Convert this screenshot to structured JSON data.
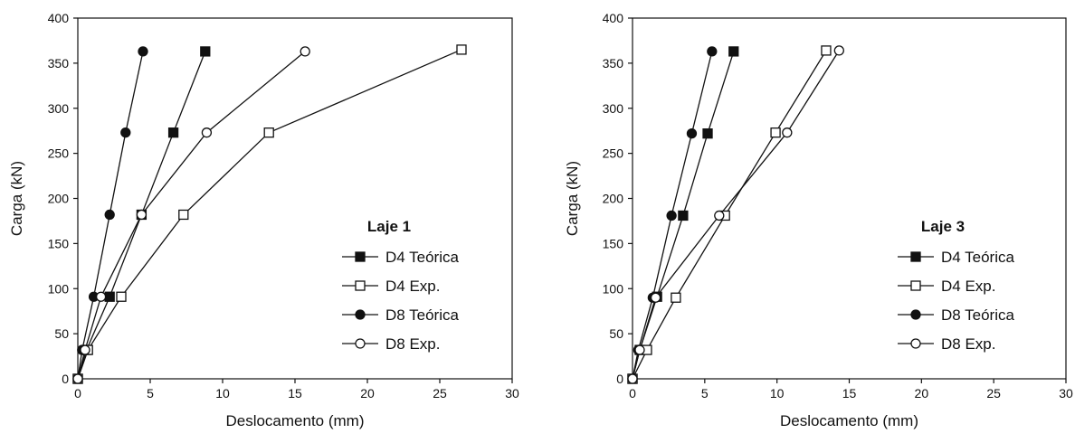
{
  "colors": {
    "ink": "#111111",
    "background": "#ffffff"
  },
  "chart_data": [
    {
      "type": "line",
      "xlabel": "Deslocamento (mm)",
      "ylabel": "Carga (kN)",
      "xlim": [
        0,
        30
      ],
      "ylim": [
        0,
        400
      ],
      "xticks": [
        "0",
        "5",
        "10",
        "15",
        "20",
        "25",
        "30"
      ],
      "yticks": [
        "0",
        "50",
        "100",
        "150",
        "200",
        "250",
        "300",
        "350",
        "400"
      ],
      "grid": false,
      "legend_position": "lower-right",
      "legend_title": "Laje 1",
      "series": [
        {
          "name": "D4 Teórica",
          "marker": "square-filled",
          "points": [
            [
              0,
              0
            ],
            [
              0.6,
              32
            ],
            [
              2.2,
              91
            ],
            [
              4.4,
              182
            ],
            [
              6.6,
              273
            ],
            [
              8.8,
              363
            ]
          ]
        },
        {
          "name": "D4 Exp.",
          "marker": "square-open",
          "points": [
            [
              0,
              0
            ],
            [
              0.7,
              32
            ],
            [
              3.0,
              91
            ],
            [
              7.3,
              182
            ],
            [
              13.2,
              273
            ],
            [
              26.5,
              365
            ]
          ]
        },
        {
          "name": "D8 Teórica",
          "marker": "circle-filled",
          "points": [
            [
              0,
              0
            ],
            [
              0.3,
              32
            ],
            [
              1.1,
              91
            ],
            [
              2.2,
              182
            ],
            [
              3.3,
              273
            ],
            [
              4.5,
              363
            ]
          ]
        },
        {
          "name": "D8 Exp.",
          "marker": "circle-open",
          "points": [
            [
              0,
              0
            ],
            [
              0.5,
              32
            ],
            [
              1.6,
              91
            ],
            [
              4.4,
              182
            ],
            [
              8.9,
              273
            ],
            [
              15.7,
              363
            ]
          ]
        }
      ]
    },
    {
      "type": "line",
      "xlabel": "Deslocamento (mm)",
      "ylabel": "Carga (kN)",
      "xlim": [
        0,
        30
      ],
      "ylim": [
        0,
        400
      ],
      "xticks": [
        "0",
        "5",
        "10",
        "15",
        "20",
        "25",
        "30"
      ],
      "yticks": [
        "0",
        "50",
        "100",
        "150",
        "200",
        "250",
        "300",
        "350",
        "400"
      ],
      "grid": false,
      "legend_position": "lower-right",
      "legend_title": "Laje 3",
      "series": [
        {
          "name": "D4 Teórica",
          "marker": "square-filled",
          "points": [
            [
              0,
              0
            ],
            [
              0.5,
              32
            ],
            [
              1.7,
              91
            ],
            [
              3.5,
              181
            ],
            [
              5.2,
              272
            ],
            [
              7.0,
              363
            ]
          ]
        },
        {
          "name": "D4 Exp.",
          "marker": "square-open",
          "points": [
            [
              0,
              0
            ],
            [
              1.0,
              32
            ],
            [
              3.0,
              90
            ],
            [
              6.4,
              181
            ],
            [
              9.9,
              273
            ],
            [
              13.4,
              364
            ]
          ]
        },
        {
          "name": "D8 Teórica",
          "marker": "circle-filled",
          "points": [
            [
              0,
              0
            ],
            [
              0.4,
              32
            ],
            [
              1.4,
              90
            ],
            [
              2.7,
              181
            ],
            [
              4.1,
              272
            ],
            [
              5.5,
              363
            ]
          ]
        },
        {
          "name": "D8 Exp.",
          "marker": "circle-open",
          "points": [
            [
              0,
              0
            ],
            [
              0.5,
              32
            ],
            [
              1.6,
              90
            ],
            [
              6.0,
              181
            ],
            [
              10.7,
              273
            ],
            [
              14.3,
              364
            ]
          ]
        }
      ]
    }
  ]
}
